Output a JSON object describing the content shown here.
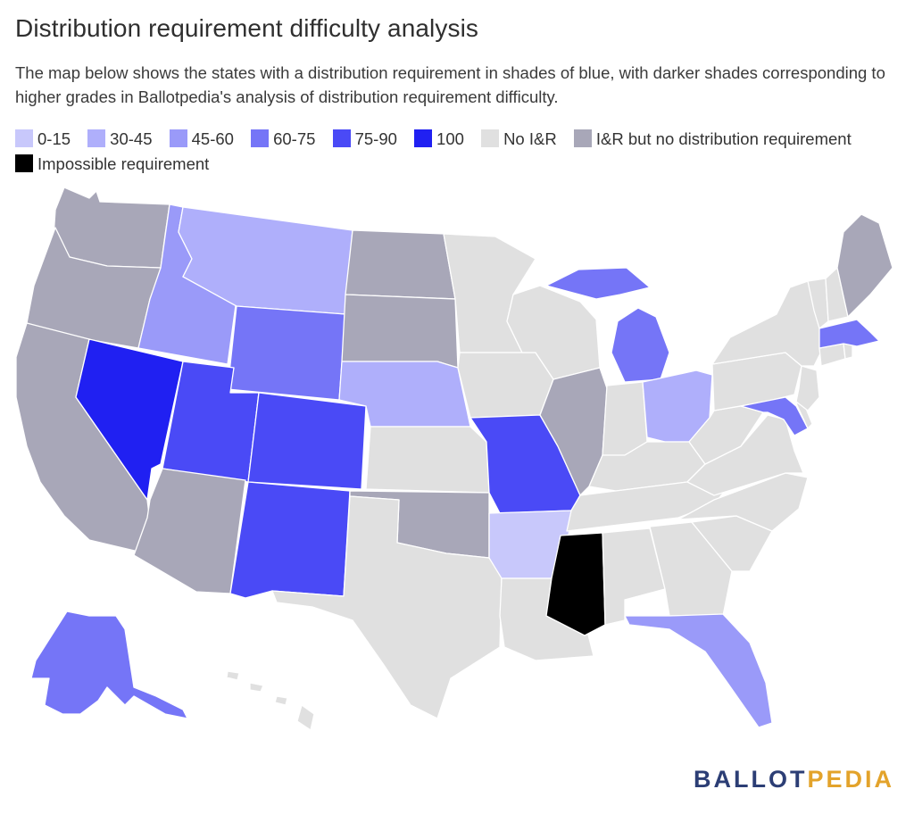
{
  "title": "Distribution requirement difficulty analysis",
  "subtitle": "The map below shows the states with a distribution requirement in shades of blue, with darker shades corresponding to higher grades in Ballotpedia's analysis of distribution requirement difficulty.",
  "legend": [
    {
      "label": "0-15",
      "color": "#c8c8fb"
    },
    {
      "label": "30-45",
      "color": "#afaffb"
    },
    {
      "label": "45-60",
      "color": "#9a9af9"
    },
    {
      "label": "60-75",
      "color": "#7575f7"
    },
    {
      "label": "75-90",
      "color": "#4a4af6"
    },
    {
      "label": "100",
      "color": "#2020f2"
    },
    {
      "label": "No I&R",
      "color": "#e0e0e0"
    },
    {
      "label": "I&R but no distribution requirement",
      "color": "#a8a7b8"
    },
    {
      "label": "Impossible requirement",
      "color": "#000000"
    }
  ],
  "state_categories": {
    "WA": "I&R but no distribution requirement",
    "OR": "I&R but no distribution requirement",
    "CA": "I&R but no distribution requirement",
    "ID": "45-60",
    "NV": "100",
    "MT": "30-45",
    "WY": "60-75",
    "UT": "75-90",
    "AZ": "I&R but no distribution requirement",
    "CO": "75-90",
    "NM": "75-90",
    "ND": "I&R but no distribution requirement",
    "SD": "I&R but no distribution requirement",
    "NE": "30-45",
    "KS": "No I&R",
    "OK": "I&R but no distribution requirement",
    "TX": "No I&R",
    "MN": "No I&R",
    "IA": "No I&R",
    "MO": "75-90",
    "AR": "0-15",
    "LA": "No I&R",
    "WI": "No I&R",
    "IL": "I&R but no distribution requirement",
    "MI": "60-75",
    "IN": "No I&R",
    "OH": "30-45",
    "KY": "No I&R",
    "TN": "No I&R",
    "MS": "Impossible requirement",
    "AL": "No I&R",
    "GA": "No I&R",
    "FL": "45-60",
    "SC": "No I&R",
    "NC": "No I&R",
    "VA": "No I&R",
    "WV": "No I&R",
    "MD": "60-75",
    "DE": "No I&R",
    "NJ": "No I&R",
    "PA": "No I&R",
    "NY": "No I&R",
    "CT": "No I&R",
    "RI": "No I&R",
    "MA": "60-75",
    "VT": "No I&R",
    "NH": "No I&R",
    "ME": "I&R but no distribution requirement",
    "AK": "60-75",
    "HI": "No I&R"
  },
  "logo": {
    "part1": "BALLOT",
    "part2": "PEDIA"
  }
}
